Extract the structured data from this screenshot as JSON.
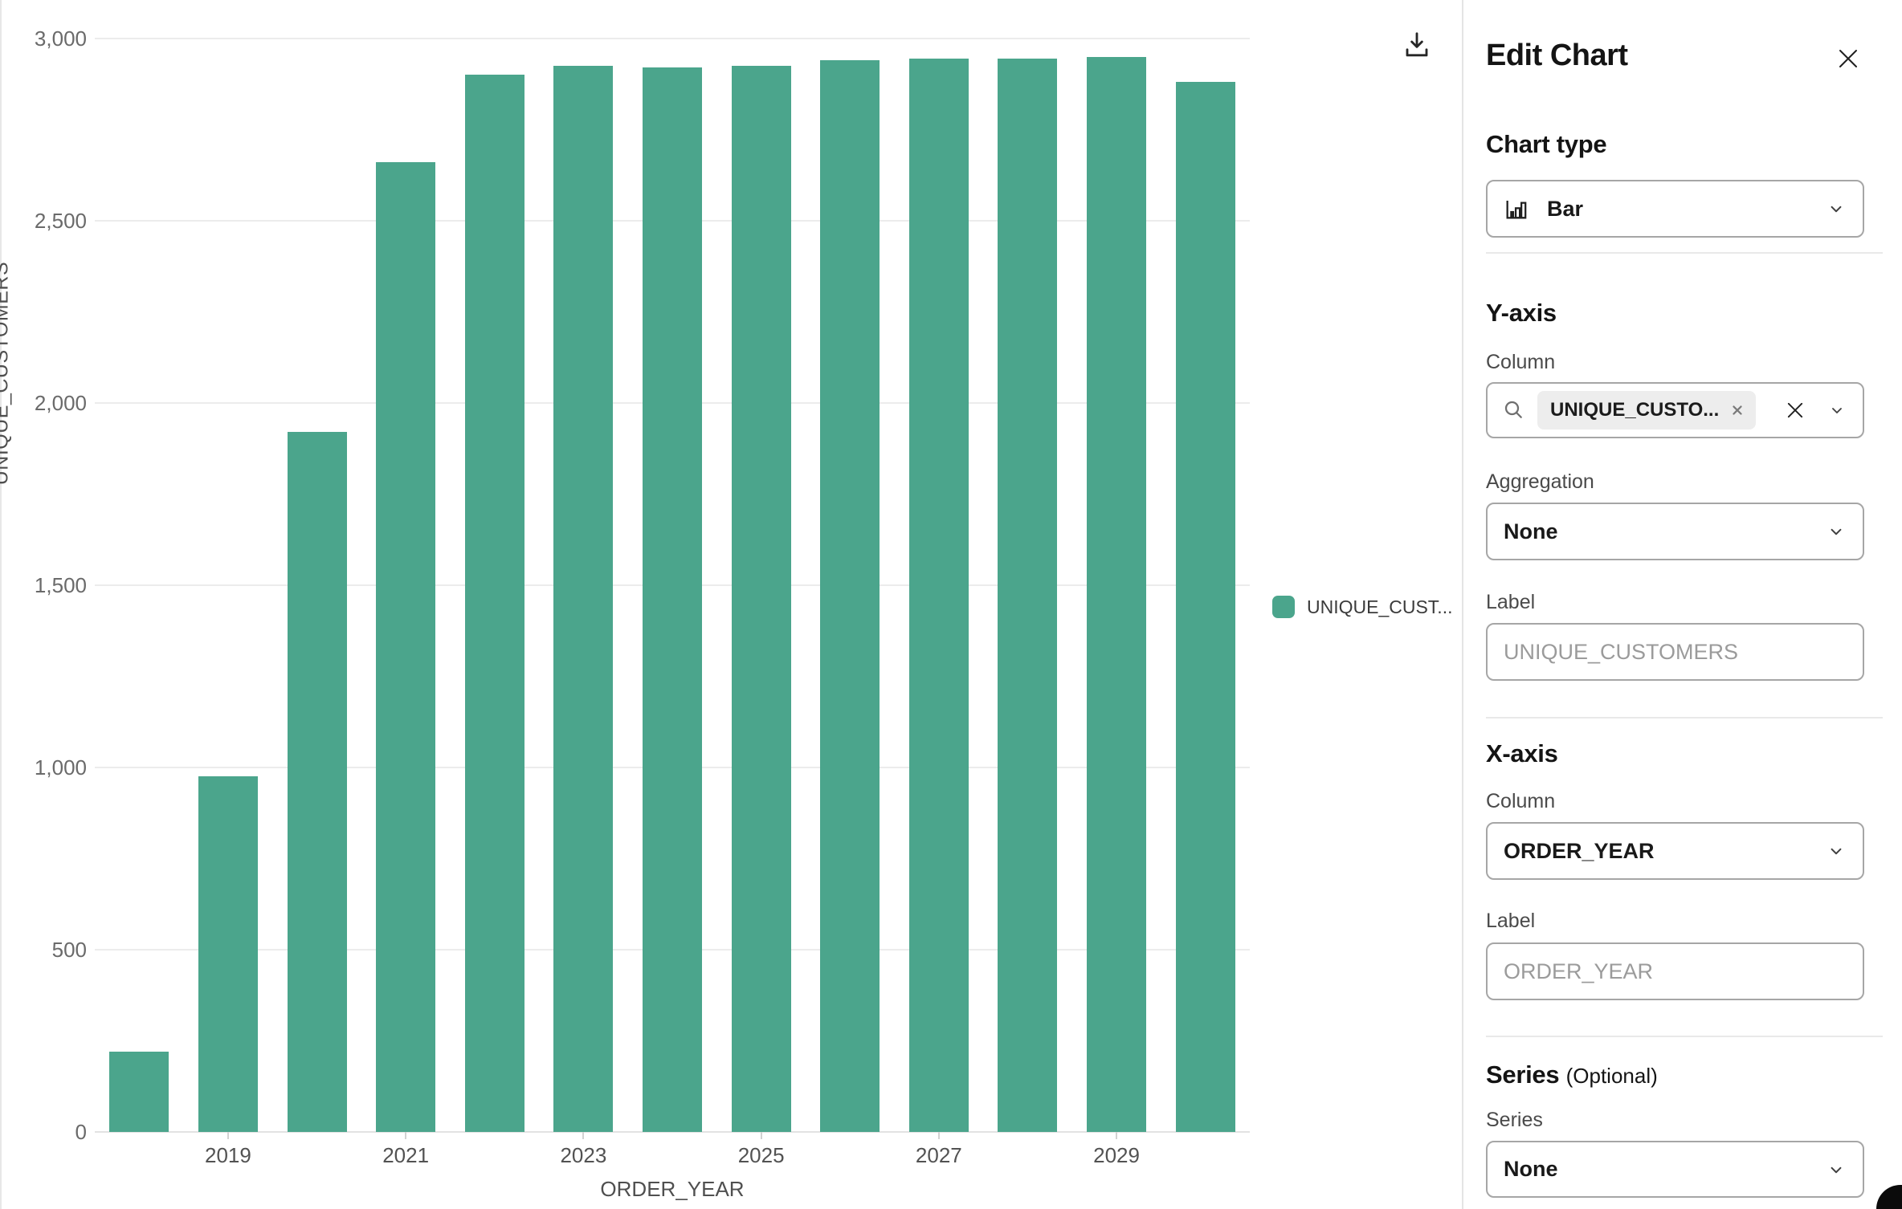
{
  "chart_data": {
    "type": "bar",
    "categories": [
      "2018",
      "2019",
      "2020",
      "2021",
      "2022",
      "2023",
      "2024",
      "2025",
      "2026",
      "2027",
      "2028",
      "2029",
      "2030"
    ],
    "values": [
      220,
      975,
      1920,
      2660,
      2900,
      2925,
      2920,
      2925,
      2940,
      2945,
      2945,
      2950,
      2880
    ],
    "xlabel": "ORDER_YEAR",
    "ylabel": "UNIQUE_CUSTOMERS",
    "ylim": [
      0,
      3000
    ],
    "y_ticks": [
      0,
      500,
      1000,
      1500,
      2000,
      2500,
      3000
    ],
    "y_tick_labels": [
      "0",
      "500",
      "1,000",
      "1,500",
      "2,000",
      "2,500",
      "3,000"
    ],
    "x_tick_labels": [
      "2019",
      "2021",
      "2023",
      "2025",
      "2027",
      "2029"
    ],
    "legend": {
      "label": "UNIQUE_CUST...",
      "position": "right"
    },
    "bar_color": "#4BA58C",
    "grid": true
  },
  "chart_toolbar": {
    "download_icon": "download-tray-arrow"
  },
  "panel": {
    "title": "Edit Chart",
    "chart_type": {
      "heading": "Chart type",
      "value": "Bar",
      "icon": "bar-chart-icon"
    },
    "y_axis": {
      "heading": "Y-axis",
      "column_label": "Column",
      "column_tag": "UNIQUE_CUSTO...",
      "aggregation_label": "Aggregation",
      "aggregation_value": "None",
      "label_label": "Label",
      "label_placeholder": "UNIQUE_CUSTOMERS"
    },
    "x_axis": {
      "heading": "X-axis",
      "column_label": "Column",
      "column_value": "ORDER_YEAR",
      "label_label": "Label",
      "label_placeholder": "ORDER_YEAR"
    },
    "series": {
      "heading": "Series",
      "heading_suffix": "(Optional)",
      "series_label": "Series",
      "series_value": "None"
    }
  }
}
